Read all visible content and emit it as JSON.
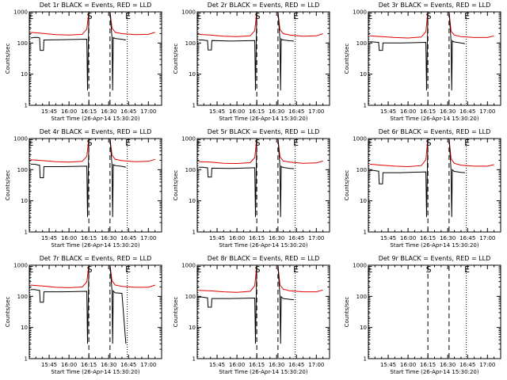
{
  "figure": {
    "x_tick_labels": [
      "15:45",
      "16:00",
      "16:15",
      "16:30",
      "16:45",
      "17:00"
    ],
    "x_tick_minutes": [
      945,
      960,
      975,
      990,
      1005,
      1020
    ],
    "x_range_minutes": [
      930,
      1030
    ],
    "y_tick_labels": [
      "1",
      "10",
      "100",
      "1000"
    ],
    "y_tick_values": [
      1,
      10,
      100,
      1000
    ],
    "y_range": [
      1,
      1000
    ],
    "y_scale": "log",
    "ylabel": "Counts/sec",
    "xlabel": "Start Time (26-Apr-14 15:30:20)",
    "markers": [
      {
        "label": "E",
        "minute": 930.5,
        "style": "dotted"
      },
      {
        "label": "E",
        "minute": 1004.0,
        "style": "dotted"
      },
      {
        "label": "S",
        "minute": 975.0,
        "style": "dashed"
      },
      {
        "label": "",
        "minute": 991.0,
        "style": "dashed"
      }
    ],
    "series_colors": {
      "events": "#000000",
      "lld": "#e00000"
    }
  },
  "chart_data": [
    {
      "type": "line",
      "title": "Det 1r BLACK = Events, RED = LLD",
      "events": {
        "x": [
          931,
          934,
          937,
          937.8,
          938.2,
          940.7,
          941,
          955,
          973.5,
          974,
          975,
          991,
          992.5,
          993,
          993.5,
          994,
          994.5,
          995,
          1000,
          1003
        ],
        "y": [
          145,
          152,
          150,
          145,
          58,
          58,
          125,
          128,
          133,
          3,
          1000,
          1000,
          145,
          3,
          150,
          142,
          145,
          140,
          132,
          125
        ]
      },
      "lld": {
        "x": [
          931,
          940,
          950,
          960,
          970,
          973.5,
          975,
          991,
          992.5,
          995,
          1000,
          1010,
          1020,
          1025
        ],
        "y": [
          220,
          205,
          185,
          180,
          190,
          280,
          1000,
          1000,
          300,
          220,
          200,
          185,
          190,
          220
        ]
      }
    },
    {
      "type": "line",
      "title": "Det 2r BLACK = Events, RED = LLD",
      "events": {
        "x": [
          931,
          934,
          937,
          937.8,
          938.2,
          940.7,
          941,
          955,
          973.5,
          974,
          975,
          991,
          992.5,
          993,
          993.5,
          994,
          994.5,
          995,
          1000,
          1003
        ],
        "y": [
          125,
          125,
          120,
          120,
          60,
          60,
          120,
          115,
          120,
          3,
          1000,
          1000,
          130,
          3,
          135,
          125,
          128,
          125,
          118,
          115
        ]
      },
      "lld": {
        "x": [
          931,
          940,
          950,
          960,
          970,
          973.5,
          975,
          991,
          992.5,
          995,
          1000,
          1010,
          1020,
          1025
        ],
        "y": [
          190,
          180,
          165,
          160,
          170,
          250,
          1000,
          1000,
          270,
          200,
          180,
          165,
          170,
          200
        ]
      }
    },
    {
      "type": "line",
      "title": "Det 3r BLACK = Events, RED = LLD",
      "events": {
        "x": [
          931,
          934,
          937,
          937.8,
          938.2,
          940.7,
          941,
          955,
          973.5,
          974,
          975,
          991,
          992.5,
          993,
          993.5,
          994,
          994.5,
          995,
          1000,
          1003
        ],
        "y": [
          110,
          108,
          105,
          105,
          58,
          58,
          100,
          100,
          105,
          3,
          1000,
          1000,
          115,
          3,
          118,
          110,
          112,
          108,
          100,
          95
        ]
      },
      "lld": {
        "x": [
          931,
          940,
          950,
          960,
          970,
          973.5,
          975,
          991,
          992.5,
          995,
          1000,
          1010,
          1020,
          1025
        ],
        "y": [
          170,
          160,
          150,
          145,
          155,
          230,
          1000,
          1000,
          240,
          180,
          160,
          150,
          150,
          170
        ]
      }
    },
    {
      "type": "line",
      "title": "Det 4r BLACK = Events, RED = LLD",
      "events": {
        "x": [
          931,
          934,
          937,
          937.8,
          938.2,
          940.7,
          941,
          955,
          973.5,
          974,
          975,
          991,
          992.5,
          993,
          993.5,
          994,
          994.5,
          995,
          1000,
          1003
        ],
        "y": [
          150,
          150,
          140,
          140,
          55,
          55,
          125,
          125,
          130,
          3,
          1000,
          1000,
          140,
          3,
          145,
          138,
          140,
          135,
          128,
          120
        ]
      },
      "lld": {
        "x": [
          931,
          940,
          950,
          960,
          970,
          973.5,
          975,
          991,
          992.5,
          995,
          1000,
          1010,
          1020,
          1025
        ],
        "y": [
          210,
          195,
          180,
          175,
          185,
          270,
          1000,
          1000,
          290,
          215,
          195,
          180,
          185,
          215
        ]
      }
    },
    {
      "type": "line",
      "title": "Det 5r BLACK = Events, RED = LLD",
      "events": {
        "x": [
          931,
          934,
          937,
          937.8,
          938.2,
          940.7,
          941,
          955,
          973.5,
          974,
          975,
          991,
          992.5,
          993,
          993.5,
          994,
          994.5,
          995,
          1000,
          1003
        ],
        "y": [
          120,
          120,
          115,
          115,
          58,
          58,
          112,
          110,
          115,
          3,
          1000,
          1000,
          125,
          3,
          128,
          120,
          122,
          118,
          110,
          108
        ]
      },
      "lld": {
        "x": [
          931,
          940,
          950,
          960,
          970,
          973.5,
          975,
          991,
          992.5,
          995,
          1000,
          1010,
          1020,
          1025
        ],
        "y": [
          180,
          175,
          160,
          158,
          168,
          245,
          1000,
          1000,
          260,
          190,
          175,
          160,
          165,
          190
        ]
      }
    },
    {
      "type": "line",
      "title": "Det 6r BLACK = Events, RED = LLD",
      "events": {
        "x": [
          931,
          934,
          937,
          937.8,
          938.2,
          940.7,
          941,
          955,
          973.5,
          974,
          975,
          991,
          992.5,
          993,
          993.5,
          994,
          994.5,
          995,
          1000,
          1003
        ],
        "y": [
          95,
          95,
          90,
          90,
          35,
          35,
          80,
          80,
          85,
          3,
          1000,
          1000,
          95,
          3,
          100,
          95,
          90,
          88,
          82,
          80
        ]
      },
      "lld": {
        "x": [
          931,
          940,
          950,
          960,
          970,
          973.5,
          975,
          991,
          992.5,
          995,
          1000,
          1010,
          1020,
          1025
        ],
        "y": [
          150,
          140,
          130,
          125,
          135,
          210,
          1000,
          1000,
          220,
          160,
          140,
          130,
          130,
          145
        ]
      }
    },
    {
      "type": "line",
      "title": "Det 7r BLACK = Events, RED = LLD",
      "events": {
        "x": [
          931,
          934,
          937,
          937.8,
          938.2,
          940.7,
          941,
          955,
          973.5,
          974,
          975,
          991,
          992.5,
          993,
          993.5,
          994,
          994.5,
          995,
          1000,
          1003
        ],
        "y": [
          165,
          165,
          155,
          155,
          65,
          65,
          140,
          140,
          145,
          3,
          1000,
          1000,
          150,
          3,
          150,
          140,
          135,
          130,
          125,
          3
        ]
      },
      "lld": {
        "x": [
          931,
          940,
          950,
          960,
          970,
          973.5,
          975,
          991,
          992.5,
          995,
          1000,
          1010,
          1020,
          1025
        ],
        "y": [
          230,
          215,
          195,
          190,
          200,
          290,
          1000,
          1000,
          310,
          230,
          210,
          195,
          195,
          230
        ]
      }
    },
    {
      "type": "line",
      "title": "Det 8r BLACK = Events, RED = LLD",
      "events": {
        "x": [
          931,
          934,
          937,
          937.8,
          938.2,
          940.7,
          941,
          955,
          973.5,
          974,
          975,
          991,
          992.5,
          993,
          993.5,
          994,
          994.5,
          995,
          1000,
          1003
        ],
        "y": [
          95,
          95,
          90,
          90,
          45,
          45,
          85,
          85,
          88,
          3,
          1000,
          1000,
          95,
          3,
          98,
          92,
          88,
          85,
          80,
          78
        ]
      },
      "lld": {
        "x": [
          931,
          940,
          950,
          960,
          970,
          973.5,
          975,
          991,
          992.5,
          995,
          1000,
          1010,
          1020,
          1025
        ],
        "y": [
          155,
          150,
          140,
          135,
          145,
          220,
          1000,
          1000,
          230,
          170,
          150,
          140,
          140,
          160
        ]
      }
    },
    {
      "type": "line",
      "title": "Det 9r BLACK = Events, RED = LLD",
      "events": {
        "x": [],
        "y": []
      },
      "lld": {
        "x": [],
        "y": []
      }
    }
  ]
}
